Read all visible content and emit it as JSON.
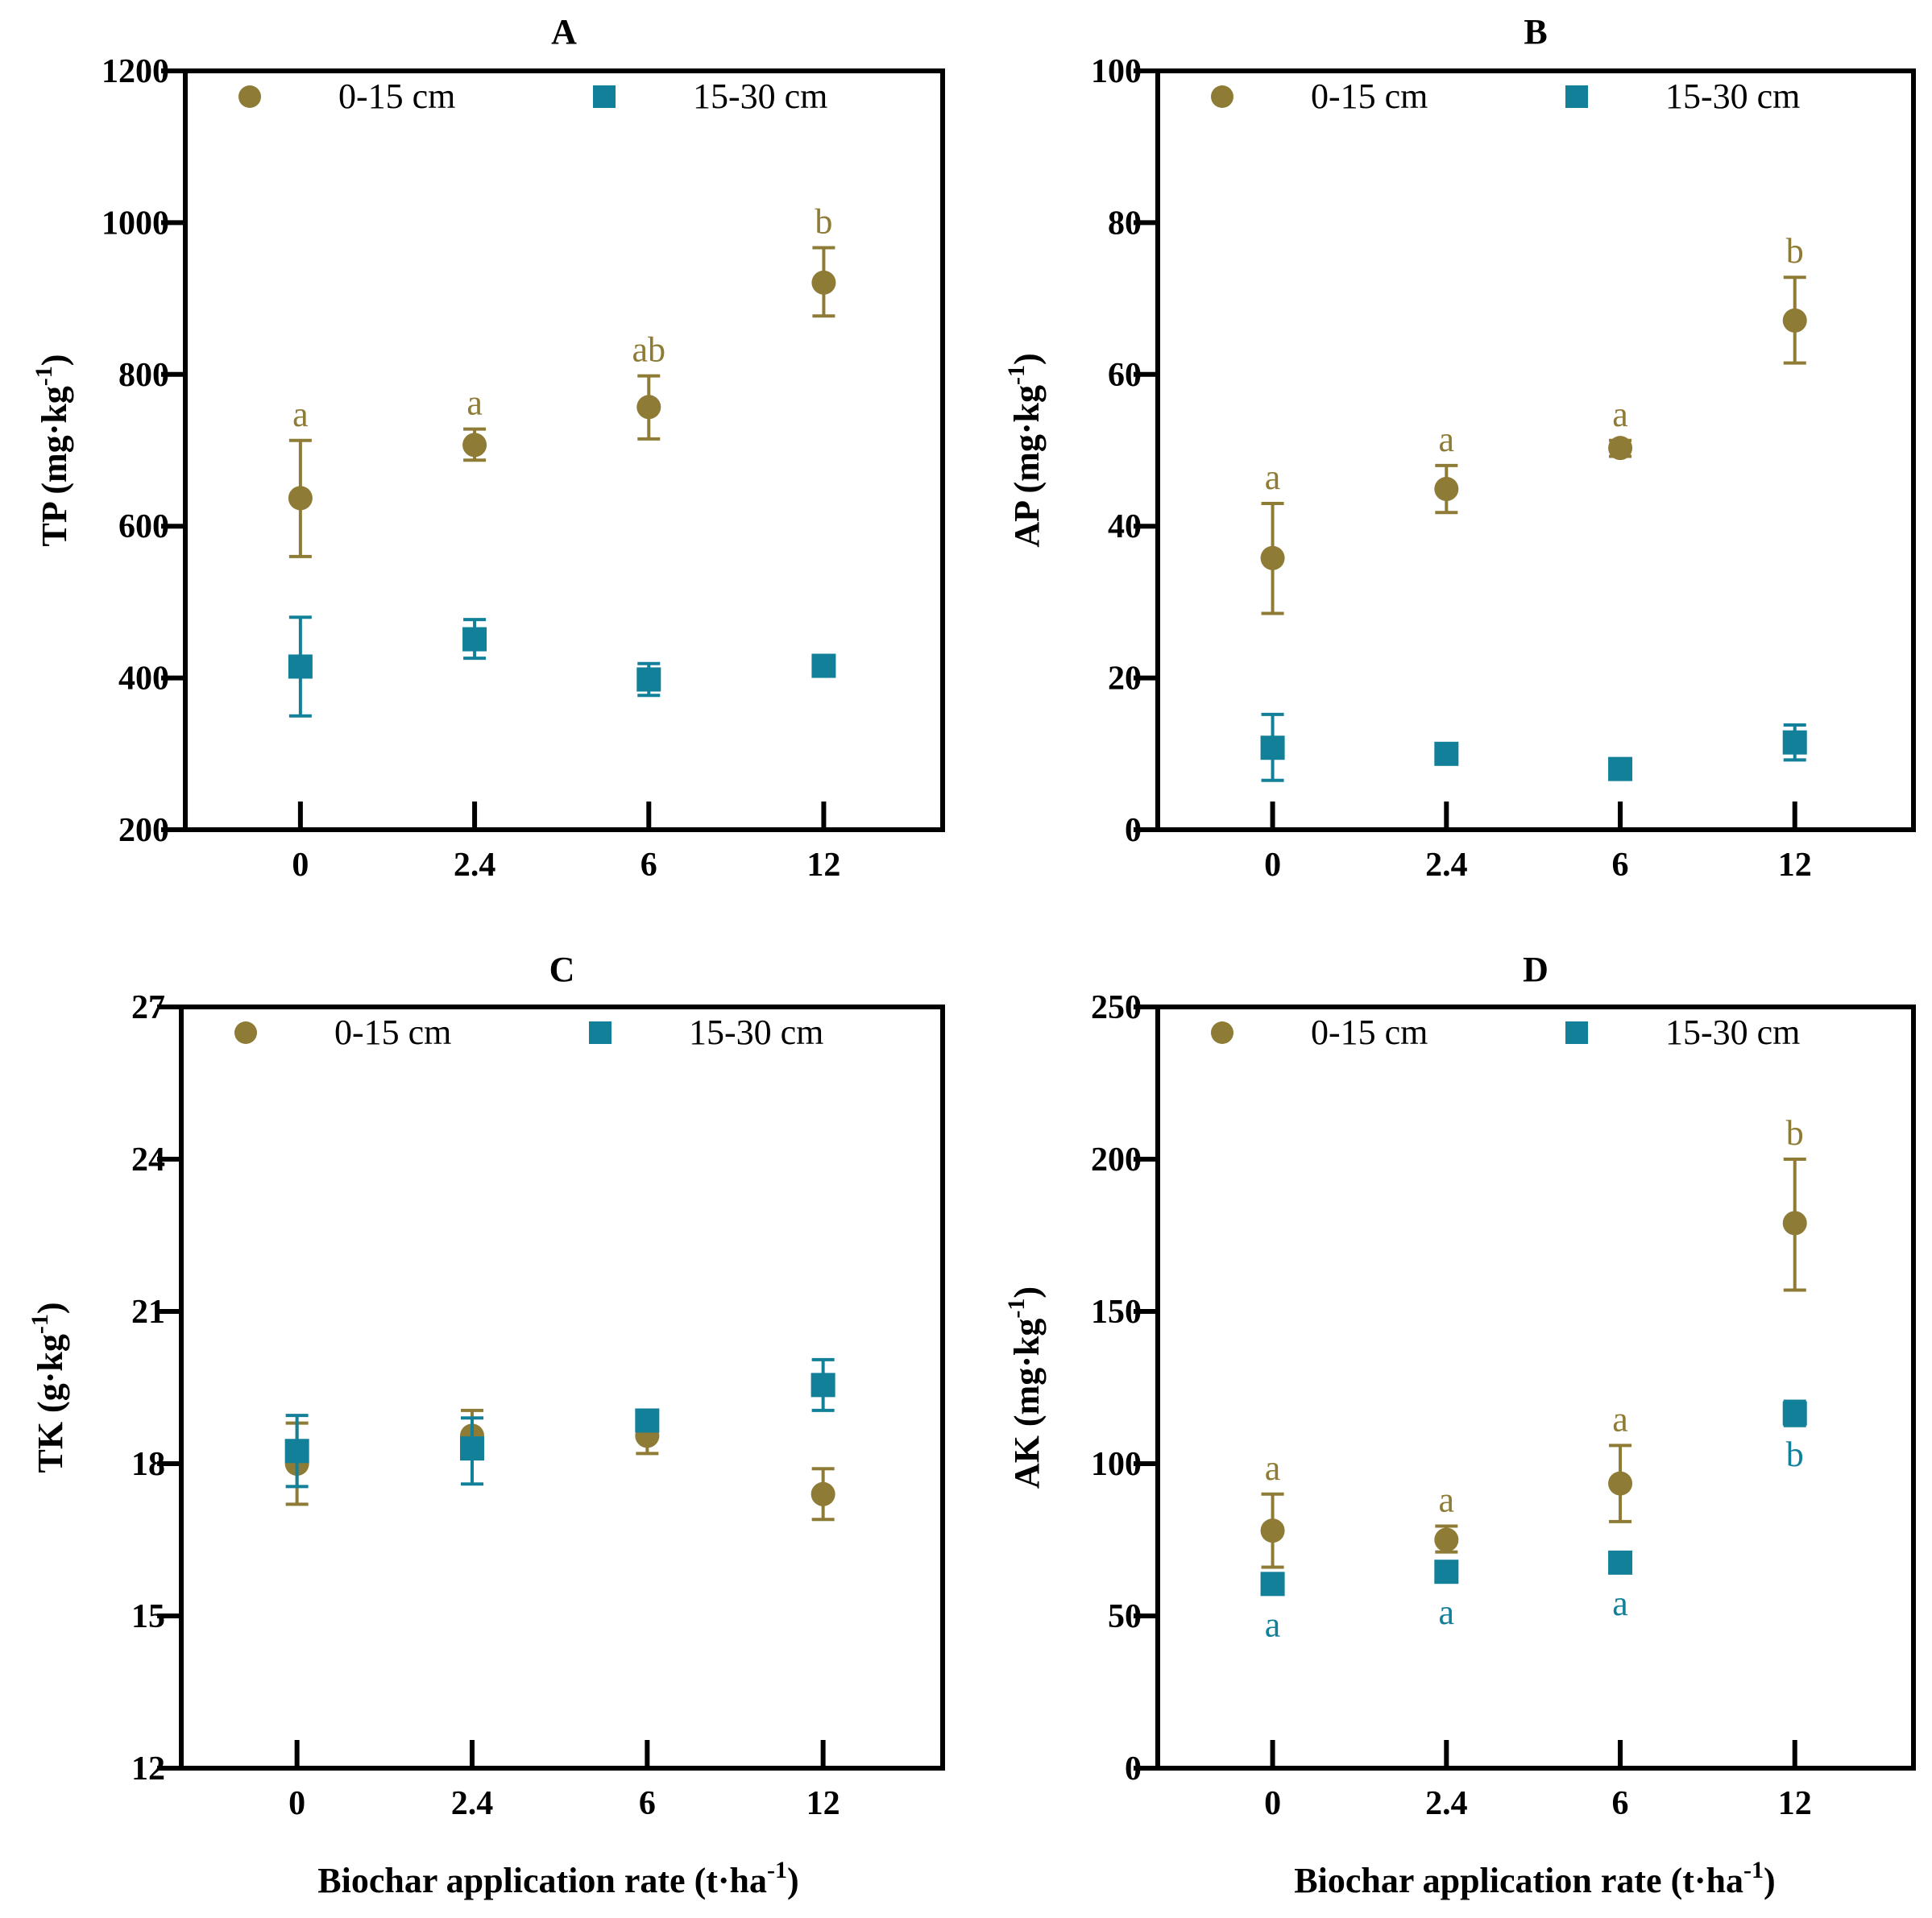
{
  "colors": {
    "topsoil": "#8e7b35",
    "subsoil": "#13809a",
    "axis": "#000000"
  },
  "legend": {
    "series1": "0-15 cm",
    "series2": "15-30 cm"
  },
  "xlabel": "Biochar application rate (t·ha",
  "xlabel_sup": "-1",
  "xlabel_close": ")",
  "chart_data": [
    {
      "panel": "A",
      "type": "scatter",
      "categories": [
        "0",
        "2.4",
        "6",
        "12"
      ],
      "ylabel": "TP (mg·kg",
      "ylabel_sup": "-1",
      "ylabel_close": ")",
      "ylim": [
        200,
        1200
      ],
      "yticks": [
        200,
        400,
        600,
        800,
        1000,
        1200
      ],
      "series": [
        {
          "name": "0-15 cm",
          "marker": "circle",
          "values": [
            637,
            707,
            757,
            921
          ],
          "err_low": [
            560,
            687,
            715,
            877
          ],
          "err_high": [
            713,
            728,
            798,
            967
          ],
          "letters": [
            "a",
            "a",
            "ab",
            "b"
          ],
          "letter_pos": "above"
        },
        {
          "name": "15-30 cm",
          "marker": "square",
          "values": [
            415,
            451,
            398,
            416
          ],
          "err_low": [
            350,
            426,
            377,
            null
          ],
          "err_high": [
            480,
            477,
            419,
            null
          ],
          "letters": [],
          "letter_pos": "below"
        }
      ]
    },
    {
      "panel": "B",
      "type": "scatter",
      "categories": [
        "0",
        "2.4",
        "6",
        "12"
      ],
      "ylabel": "AP (mg·kg",
      "ylabel_sup": "-1",
      "ylabel_close": ")",
      "ylim": [
        0,
        100
      ],
      "yticks": [
        0,
        20,
        40,
        60,
        80,
        100
      ],
      "series": [
        {
          "name": "0-15 cm",
          "marker": "circle",
          "values": [
            35.8,
            44.9,
            50.3,
            67.1
          ],
          "err_low": [
            28.5,
            41.8,
            49.2,
            61.5
          ],
          "err_high": [
            43.0,
            48.0,
            51.3,
            72.8
          ],
          "letters": [
            "a",
            "a",
            "a",
            "b"
          ],
          "letter_pos": "above"
        },
        {
          "name": "15-30 cm",
          "marker": "square",
          "values": [
            10.8,
            10.0,
            8.0,
            11.5
          ],
          "err_low": [
            6.5,
            null,
            null,
            9.2
          ],
          "err_high": [
            15.2,
            null,
            null,
            13.8
          ],
          "letters": [],
          "letter_pos": "below"
        }
      ]
    },
    {
      "panel": "C",
      "type": "scatter",
      "categories": [
        "0",
        "2.4",
        "6",
        "12"
      ],
      "ylabel": "TK (g·kg",
      "ylabel_sup": "-1",
      "ylabel_close": ")",
      "ylim": [
        12,
        27
      ],
      "yticks": [
        12,
        15,
        18,
        21,
        24,
        27
      ],
      "series": [
        {
          "name": "0-15 cm",
          "marker": "circle",
          "values": [
            18.0,
            18.55,
            18.55,
            17.4
          ],
          "err_low": [
            17.2,
            18.1,
            18.2,
            16.9
          ],
          "err_high": [
            18.8,
            19.05,
            18.9,
            17.9
          ],
          "letters": [],
          "letter_pos": "above"
        },
        {
          "name": "15-30 cm",
          "marker": "square",
          "values": [
            18.25,
            18.3,
            18.85,
            19.55
          ],
          "err_low": [
            17.55,
            17.6,
            18.65,
            19.05
          ],
          "err_high": [
            18.95,
            18.9,
            19.05,
            20.05
          ],
          "letters": [],
          "letter_pos": "below"
        }
      ]
    },
    {
      "panel": "D",
      "type": "scatter",
      "categories": [
        "0",
        "2.4",
        "6",
        "12"
      ],
      "ylabel": "AK (mg·kg",
      "ylabel_sup": "-1",
      "ylabel_close": ")",
      "ylim": [
        0,
        250
      ],
      "yticks": [
        0,
        50,
        100,
        150,
        200,
        250
      ],
      "series": [
        {
          "name": "0-15 cm",
          "marker": "circle",
          "values": [
            78,
            75,
            93.5,
            179
          ],
          "err_low": [
            66,
            71,
            81,
            157
          ],
          "err_high": [
            90,
            79.5,
            106,
            200
          ],
          "letters": [
            "a",
            "a",
            "a",
            "b"
          ],
          "letter_pos": "above"
        },
        {
          "name": "15-30 cm",
          "marker": "square",
          "values": [
            60.5,
            64.5,
            67.5,
            116.5
          ],
          "err_low": [
            null,
            null,
            null,
            112.5
          ],
          "err_high": [
            null,
            null,
            null,
            120.5
          ],
          "letters": [
            "a",
            "a",
            "a",
            "b"
          ],
          "letter_pos": "below"
        }
      ]
    }
  ]
}
